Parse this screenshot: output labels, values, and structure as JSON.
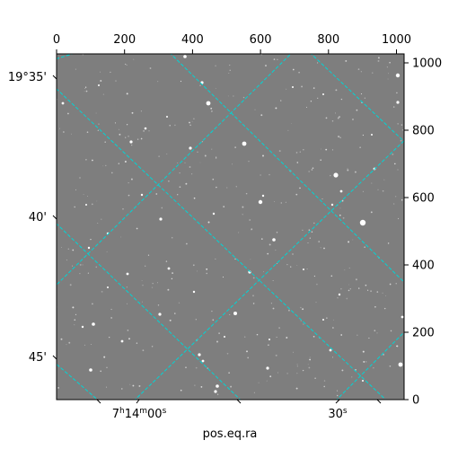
{
  "figure": {
    "xlabel": "pos.eq.ra",
    "pixel_axis_top_ticks": [
      "0",
      "200",
      "400",
      "600",
      "800",
      "1000"
    ],
    "pixel_axis_right_ticks": [
      "0",
      "200",
      "400",
      "600",
      "800",
      "1000"
    ],
    "dec_ticks": [
      "19°35'",
      "40'",
      "45'"
    ],
    "ra_ticks": {
      "first": {
        "base": "7",
        "h": "h",
        "mid": "14",
        "m": "m",
        "tail": "00",
        "s": "s"
      },
      "second": {
        "base": "30",
        "s": "s"
      }
    },
    "colors": {
      "sky_background": "#7e7e7e",
      "grid_lines": "#00d5d5",
      "frame": "#000000"
    },
    "grid_style": "dashed",
    "image_content": "grayscale star field"
  }
}
